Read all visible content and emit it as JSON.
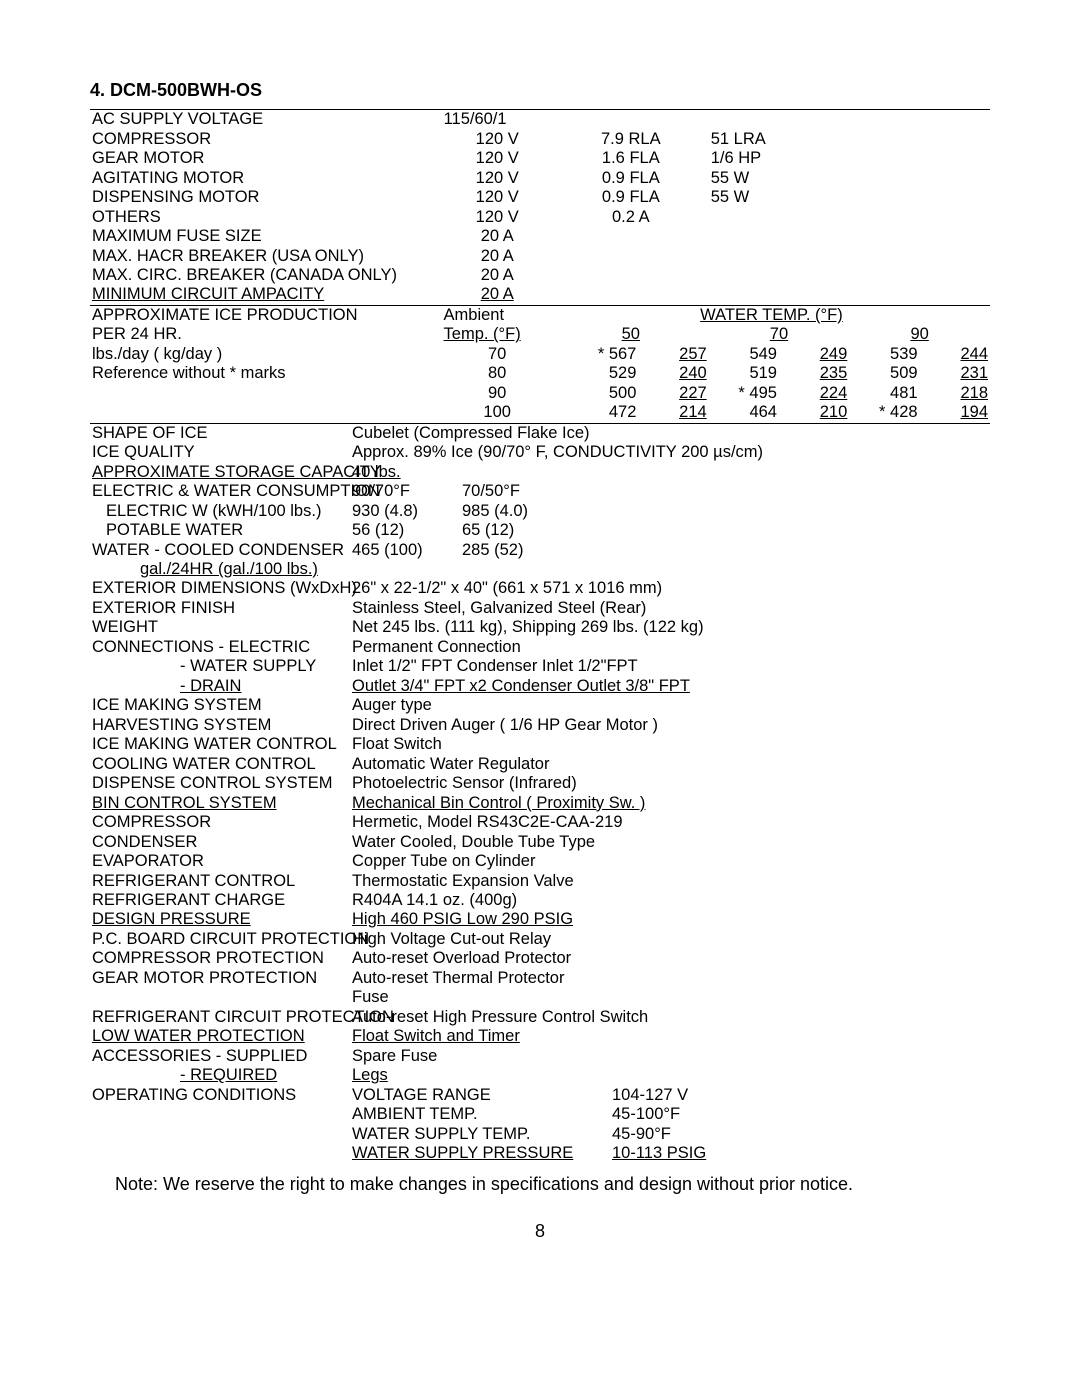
{
  "heading": "4. DCM-500BWH-OS",
  "rows": [
    {
      "label": "AC SUPPLY VOLTAGE",
      "v1": "115/60/1",
      "hrTop": true
    },
    {
      "label": "COMPRESSOR",
      "v1": "120 V",
      "v2": "7.9 RLA",
      "v3": "51 LRA",
      "v1c": true
    },
    {
      "label": "GEAR MOTOR",
      "v1": "120 V",
      "v2": "1.6 FLA",
      "v3": "1/6 HP",
      "v1c": true
    },
    {
      "label": "AGITATING MOTOR",
      "v1": "120 V",
      "v2": "0.9 FLA",
      "v3": "55 W",
      "v1c": true
    },
    {
      "label": "DISPENSING MOTOR",
      "v1": "120 V",
      "v2": "0.9 FLA",
      "v3": "55 W",
      "v1c": true
    },
    {
      "label": "OTHERS",
      "v1": "120 V",
      "v2": "0.2 A",
      "v1c": true
    },
    {
      "label": "MAXIMUM FUSE SIZE",
      "v1": "20 A",
      "v1c": true
    },
    {
      "label": "MAX. HACR BREAKER (USA ONLY)",
      "v1": "20 A",
      "v1c": true
    },
    {
      "label": "MAX. CIRC. BREAKER (CANADA ONLY)",
      "v1": "20 A",
      "v1c": true
    },
    {
      "label": "MINIMUM CIRCUIT AMPACITY",
      "v1": "20 A",
      "ul": true,
      "v1c": true
    }
  ],
  "prodHeader": {
    "l1": "APPROXIMATE ICE PRODUCTION",
    "l2": "PER 24 HR.",
    "l3": "lbs./day ( kg/day )",
    "l4": "Reference without * marks",
    "ambient": "Ambient",
    "tempF": "Temp. (°F)",
    "waterTemp": "WATER TEMP. (°F)",
    "c50": "50",
    "c70": "70",
    "c90": "90"
  },
  "prodRows": [
    {
      "t": "70",
      "a": "* 567",
      "b": "257",
      "c": "549",
      "d": "249",
      "e": "539",
      "f": "244"
    },
    {
      "t": "80",
      "a": "529",
      "b": "240",
      "c": "519",
      "d": "235",
      "e": "509",
      "f": "231"
    },
    {
      "t": "90",
      "a": "500",
      "b": "227",
      "c": "* 495",
      "d": "224",
      "e": "481",
      "f": "218"
    },
    {
      "t": "100",
      "a": "472",
      "b": "214",
      "c": "464",
      "d": "210",
      "e": "* 428",
      "f": "194"
    }
  ],
  "rows2": [
    {
      "label": "SHAPE OF ICE",
      "v": "Cubelet (Compressed Flake Ice)",
      "hrTop": true
    },
    {
      "label": "ICE QUALITY",
      "v": "Approx. 89% Ice (90/70° F, CONDUCTIVITY 200 µs/cm)"
    },
    {
      "label": "APPROXIMATE STORAGE CAPACITY",
      "v": "40 lbs.",
      "ul": true
    },
    {
      "label": "ELECTRIC & WATER CONSUMPTION",
      "v1": "90/70°F",
      "v2": "70/50°F"
    },
    {
      "label": "ELECTRIC    W (kWH/100 lbs.)",
      "indent": 1,
      "v1": "930 (4.8)",
      "v2": "985 (4.0)"
    },
    {
      "label": "POTABLE WATER",
      "indent": 1,
      "v1": "56 (12)",
      "v2": "65 (12)"
    },
    {
      "label": "WATER - COOLED CONDENSER",
      "v1": "465 (100)",
      "v2": "285 (52)"
    },
    {
      "label": "gal./24HR    (gal./100 lbs.)",
      "indent": 2,
      "ul": true
    },
    {
      "label": "EXTERIOR DIMENSIONS (WxDxH)",
      "v": "26\" x 22-1/2\" x 40\"   (661 x 571 x 1016 mm)"
    },
    {
      "label": "EXTERIOR FINISH",
      "v": "Stainless Steel, Galvanized Steel (Rear)"
    },
    {
      "label": "WEIGHT",
      "v": "Net 245 lbs. (111 kg), Shipping 269 lbs. (122 kg)"
    },
    {
      "label": "CONNECTIONS - ELECTRIC",
      "v": "Permanent Connection"
    },
    {
      "label": "- WATER SUPPLY",
      "indent": 3,
      "v": "Inlet      1/2\" FPT    Condenser Inlet  1/2\"FPT"
    },
    {
      "label": "- DRAIN",
      "indent": 3,
      "v": "Outlet    3/4\" FPT x2 Condenser Outlet  3/8\" FPT",
      "ul": true
    },
    {
      "label": "ICE MAKING SYSTEM",
      "v": "Auger type"
    },
    {
      "label": "HARVESTING SYSTEM",
      "v": "Direct Driven Auger ( 1/6 HP Gear Motor )"
    },
    {
      "label": "ICE MAKING WATER CONTROL",
      "v": "Float Switch"
    },
    {
      "label": "COOLING WATER CONTROL",
      "v": "Automatic Water Regulator"
    },
    {
      "label": "DISPENSE CONTROL SYSTEM",
      "v": "Photoelectric Sensor (Infrared)"
    },
    {
      "label": "BIN CONTROL SYSTEM",
      "v": "Mechanical Bin Control ( Proximity Sw. )",
      "ul": true
    },
    {
      "label": "COMPRESSOR",
      "v": "Hermetic, Model RS43C2E-CAA-219"
    },
    {
      "label": "CONDENSER",
      "v": "Water Cooled, Double Tube Type"
    },
    {
      "label": "EVAPORATOR",
      "v": "Copper Tube on Cylinder"
    },
    {
      "label": "REFRIGERANT CONTROL",
      "v": "Thermostatic Expansion Valve"
    },
    {
      "label": "REFRIGERANT CHARGE",
      "v": "R404A       14.1 oz.  (400g)"
    },
    {
      "label": "DESIGN PRESSURE",
      "v": "High 460 PSIG              Low 290 PSIG",
      "ul": true
    },
    {
      "label": "P.C. BOARD CIRCUIT PROTECTION",
      "v": "High Voltage Cut-out Relay"
    },
    {
      "label": "COMPRESSOR PROTECTION",
      "v": "Auto-reset Overload Protector"
    },
    {
      "label": "GEAR MOTOR PROTECTION",
      "v": "Auto-reset Thermal Protector"
    },
    {
      "label": "",
      "v": "Fuse"
    },
    {
      "label": "REFRIGERANT CIRCUIT PROTECTION",
      "v": "Auto-reset High Pressure Control Switch"
    },
    {
      "label": "LOW WATER PROTECTION",
      "v": "Float Switch and Timer",
      "ul": true
    },
    {
      "label": "ACCESSORIES - SUPPLIED",
      "v": "Spare Fuse"
    },
    {
      "label": "- REQUIRED",
      "indent": 3,
      "v": "Legs",
      "ul": true
    },
    {
      "label": "OPERATING CONDITIONS",
      "v1w": "VOLTAGE RANGE",
      "v2w": "104-127 V"
    },
    {
      "label": "",
      "v1w": "AMBIENT TEMP.",
      "v2w": "45-100°F"
    },
    {
      "label": "",
      "v1w": "WATER SUPPLY TEMP.",
      "v2w": "45-90°F"
    },
    {
      "label": "",
      "v1w": "WATER SUPPLY PRESSURE",
      "v2w": "10-113 PSIG",
      "ul": true
    }
  ],
  "note": "Note: We reserve the right to make changes in specifications and design without prior notice.",
  "pageNum": "8"
}
